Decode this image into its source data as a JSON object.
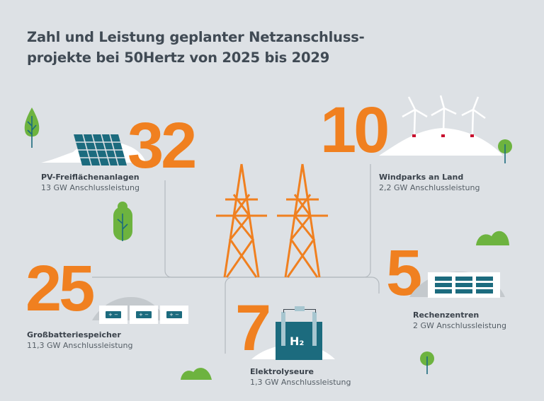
{
  "title": {
    "line1": "Zahl und Leistung geplanter Netzanschluss-",
    "line2": "projekte bei 50Hertz von 2025 bis 2029"
  },
  "colors": {
    "accent": "#f08020",
    "teal": "#1c6b7e",
    "background": "#dde1e5",
    "tree_green": "#6db33f"
  },
  "categories": [
    {
      "count": "32",
      "name": "PV-Freiflächenanlagen",
      "capacity": "13 GW Anschlussleistung",
      "icon": "solar-panel-icon"
    },
    {
      "count": "10",
      "name": "Windparks an Land",
      "capacity": "2,2 GW Anschlussleistung",
      "icon": "wind-turbine-icon"
    },
    {
      "count": "25",
      "name": "Großbatteriespeicher",
      "capacity": "11,3 GW Anschlussleistung",
      "icon": "battery-icon"
    },
    {
      "count": "5",
      "name": "Rechenzentren",
      "capacity": "2 GW Anschlussleistung",
      "icon": "server-rack-icon"
    },
    {
      "count": "7",
      "name": "Elektrolyseure",
      "capacity": "1,3 GW Anschlussleistung",
      "icon": "electrolyzer-icon",
      "symbol": "H₂"
    }
  ],
  "battery_symbol": "+ −"
}
